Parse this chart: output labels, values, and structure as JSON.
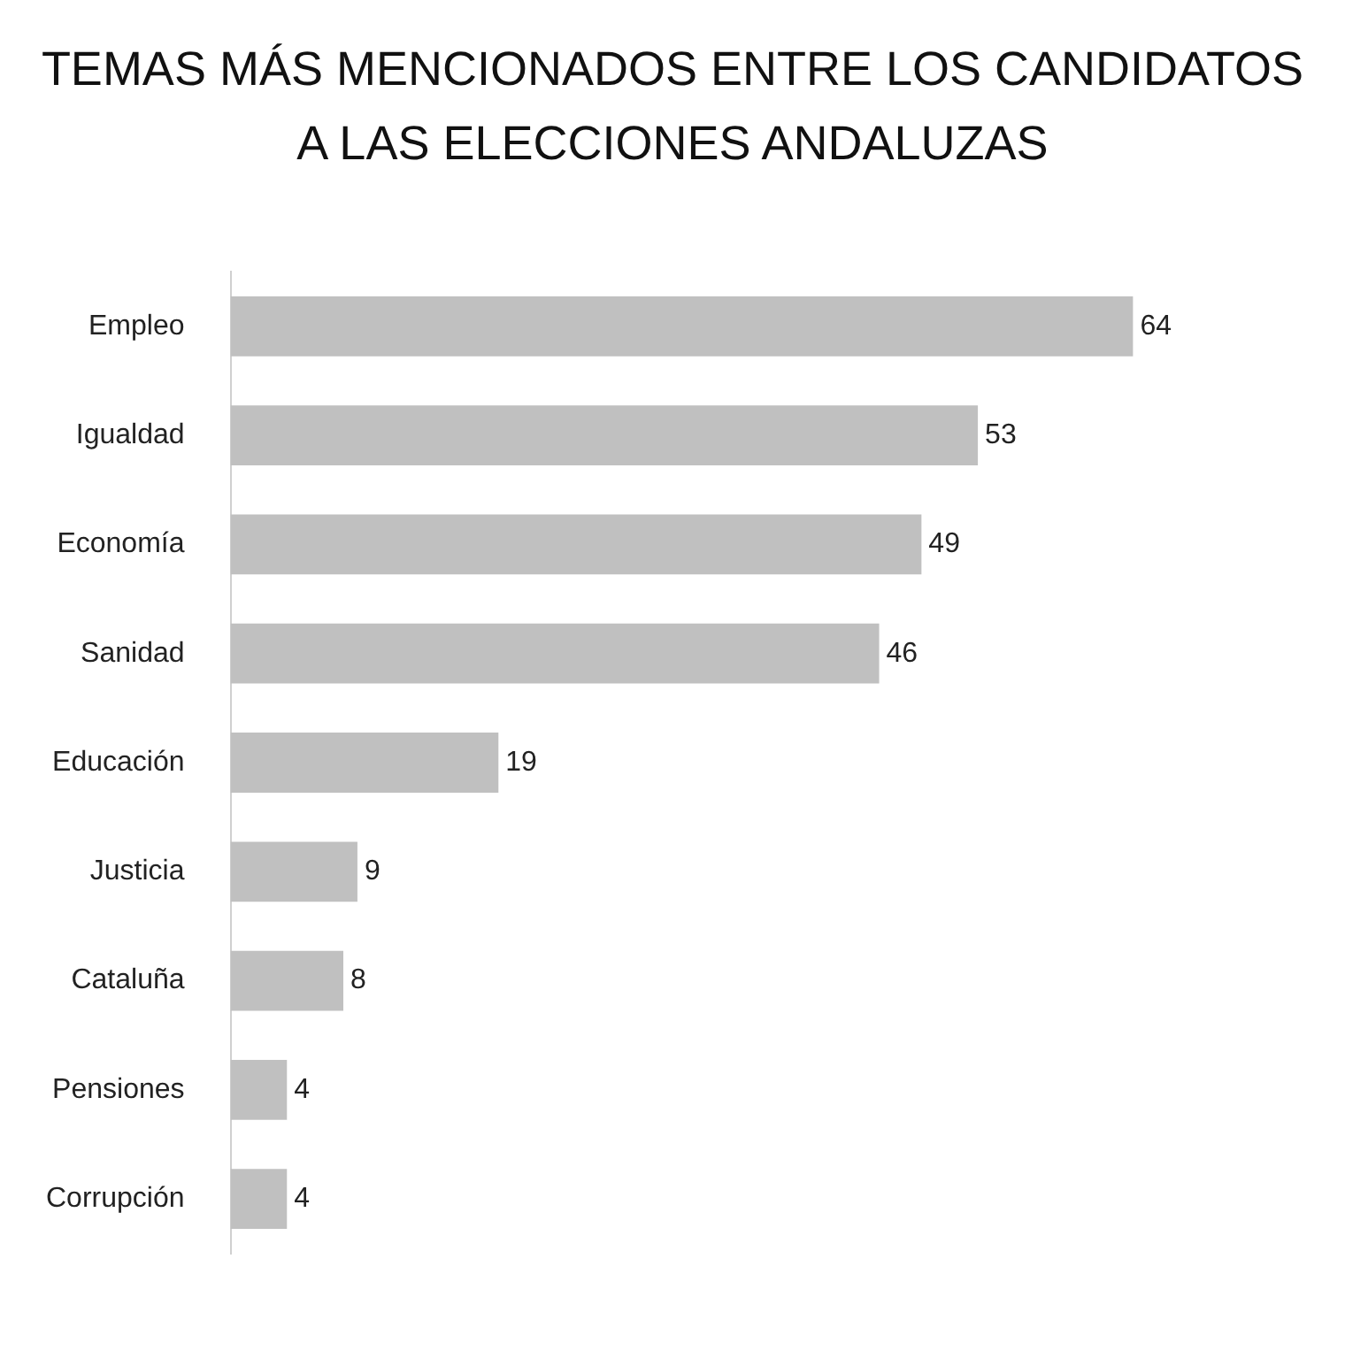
{
  "chart_data": {
    "type": "bar",
    "orientation": "horizontal",
    "title": "TEMAS MÁS MENCIONADOS ENTRE LOS CANDIDATOS A LAS ELECCIONES ANDALUZAS",
    "categories": [
      "Empleo",
      "Igualdad",
      "Economía",
      "Sanidad",
      "Educación",
      "Justicia",
      "Cataluña",
      "Pensiones",
      "Corrupción"
    ],
    "values": [
      64,
      53,
      49,
      46,
      19,
      9,
      8,
      4,
      4
    ],
    "color": "#c0c0c0",
    "data_labels": true,
    "legend": false
  }
}
